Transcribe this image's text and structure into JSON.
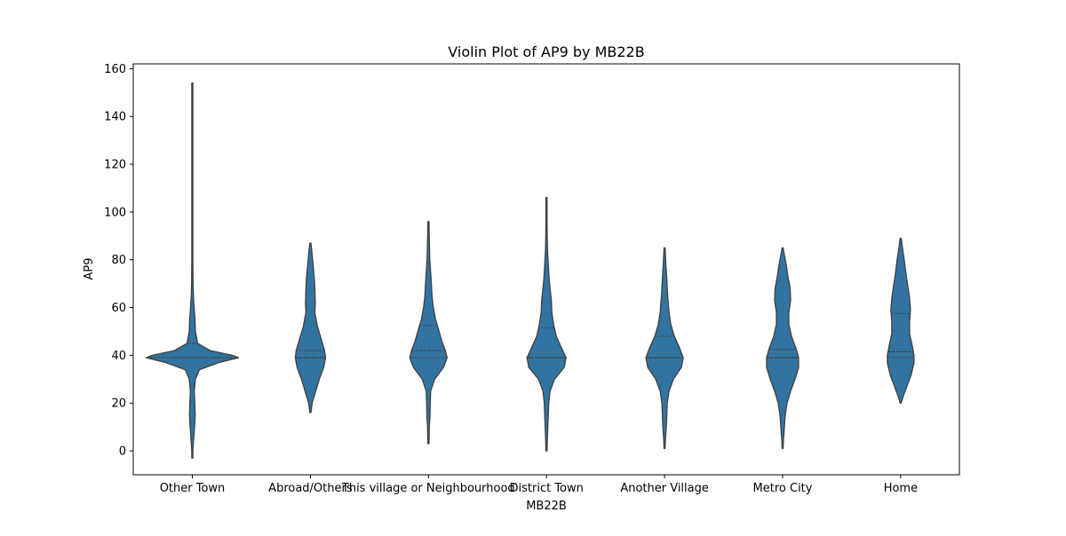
{
  "chart_data": {
    "type": "violin",
    "title": "Violin Plot of AP9 by MB22B",
    "xlabel": "MB22B",
    "ylabel": "AP9",
    "ylim": [
      -10,
      162
    ],
    "yticks": [
      0,
      20,
      40,
      60,
      80,
      100,
      120,
      140,
      160
    ],
    "categories": [
      "Other Town",
      "Abroad/Others",
      "This village or Neighbourhood",
      "District Town",
      "Another Village",
      "Metro City",
      "Home"
    ],
    "grid": false,
    "color": "#3274a1",
    "edge_color": "#3f3f3f",
    "violins": [
      {
        "category": "Other Town",
        "quartiles": [
          27.5,
          39,
          45
        ],
        "profile": [
          [
            -3,
            0.1
          ],
          [
            0,
            0.3
          ],
          [
            5,
            1.5
          ],
          [
            10,
            2.5
          ],
          [
            15,
            3.2
          ],
          [
            20,
            2.8
          ],
          [
            25,
            2.2
          ],
          [
            30,
            3.5
          ],
          [
            34,
            8
          ],
          [
            37,
            30
          ],
          [
            39,
            52
          ],
          [
            40,
            45
          ],
          [
            42,
            20
          ],
          [
            45,
            6
          ],
          [
            50,
            3.5
          ],
          [
            55,
            3
          ],
          [
            60,
            2
          ],
          [
            65,
            1.2
          ],
          [
            70,
            0.8
          ],
          [
            80,
            0.35
          ],
          [
            90,
            0.15
          ],
          [
            100,
            0.12
          ],
          [
            120,
            0.1
          ],
          [
            140,
            0.08
          ],
          [
            154,
            0.05
          ]
        ]
      },
      {
        "category": "Abroad/Others",
        "quartiles": [
          39,
          39,
          42
        ],
        "profile": [
          [
            16,
            0.4
          ],
          [
            20,
            2
          ],
          [
            25,
            6
          ],
          [
            30,
            10
          ],
          [
            35,
            15
          ],
          [
            39,
            17
          ],
          [
            42,
            16
          ],
          [
            47,
            12
          ],
          [
            52,
            8
          ],
          [
            58,
            5
          ],
          [
            62,
            5.5
          ],
          [
            68,
            5
          ],
          [
            72,
            4.5
          ],
          [
            78,
            3
          ],
          [
            83,
            1.8
          ],
          [
            87,
            0.4
          ]
        ]
      },
      {
        "category": "This village or Neighbourhood",
        "quartiles": [
          39,
          42,
          52.5
        ],
        "profile": [
          [
            3,
            0.2
          ],
          [
            10,
            1
          ],
          [
            15,
            1.8
          ],
          [
            20,
            2
          ],
          [
            25,
            2.5
          ],
          [
            30,
            7
          ],
          [
            35,
            17
          ],
          [
            39,
            21
          ],
          [
            42,
            19
          ],
          [
            46,
            15
          ],
          [
            50,
            12
          ],
          [
            55,
            8
          ],
          [
            60,
            5.5
          ],
          [
            65,
            4
          ],
          [
            72,
            3
          ],
          [
            80,
            1.5
          ],
          [
            88,
            1
          ],
          [
            96,
            0.3
          ]
        ]
      },
      {
        "category": "District Town",
        "quartiles": [
          39,
          39,
          51.5
        ],
        "profile": [
          [
            0,
            0.2
          ],
          [
            5,
            1
          ],
          [
            10,
            1.5
          ],
          [
            15,
            2
          ],
          [
            20,
            2.5
          ],
          [
            25,
            4
          ],
          [
            30,
            9
          ],
          [
            35,
            20
          ],
          [
            39,
            22
          ],
          [
            43,
            17
          ],
          [
            48,
            11
          ],
          [
            53,
            8
          ],
          [
            58,
            6
          ],
          [
            63,
            5.5
          ],
          [
            68,
            4
          ],
          [
            72,
            3
          ],
          [
            78,
            2
          ],
          [
            85,
            1
          ],
          [
            95,
            0.5
          ],
          [
            106,
            0.2
          ]
        ]
      },
      {
        "category": "Another Village",
        "quartiles": [
          39,
          39,
          48
        ],
        "profile": [
          [
            1,
            0.3
          ],
          [
            5,
            1
          ],
          [
            10,
            2
          ],
          [
            15,
            2.5
          ],
          [
            20,
            3
          ],
          [
            25,
            5
          ],
          [
            30,
            10
          ],
          [
            35,
            19
          ],
          [
            39,
            21
          ],
          [
            43,
            17
          ],
          [
            48,
            11
          ],
          [
            53,
            7
          ],
          [
            58,
            5
          ],
          [
            65,
            3.5
          ],
          [
            72,
            2.5
          ],
          [
            78,
            1.5
          ],
          [
            85,
            0.3
          ]
        ]
      },
      {
        "category": "Metro City",
        "quartiles": [
          39,
          39,
          42.5
        ],
        "profile": [
          [
            1,
            0.2
          ],
          [
            5,
            1
          ],
          [
            10,
            2
          ],
          [
            15,
            3
          ],
          [
            20,
            5
          ],
          [
            25,
            9
          ],
          [
            30,
            14
          ],
          [
            35,
            18
          ],
          [
            39,
            18
          ],
          [
            43,
            15
          ],
          [
            48,
            10
          ],
          [
            53,
            7
          ],
          [
            58,
            7
          ],
          [
            63,
            9
          ],
          [
            68,
            8.5
          ],
          [
            73,
            6
          ],
          [
            78,
            4
          ],
          [
            82,
            2
          ],
          [
            85,
            0.3
          ]
        ]
      },
      {
        "category": "Home",
        "quartiles": [
          39,
          41.5,
          57.5
        ],
        "profile": [
          [
            20,
            0.5
          ],
          [
            23,
            3
          ],
          [
            27,
            7
          ],
          [
            32,
            12
          ],
          [
            37,
            15
          ],
          [
            40,
            15
          ],
          [
            44,
            13
          ],
          [
            49,
            10
          ],
          [
            54,
            10
          ],
          [
            59,
            11
          ],
          [
            64,
            10
          ],
          [
            69,
            8
          ],
          [
            74,
            6
          ],
          [
            80,
            4
          ],
          [
            85,
            2
          ],
          [
            89,
            0.5
          ]
        ]
      }
    ]
  }
}
